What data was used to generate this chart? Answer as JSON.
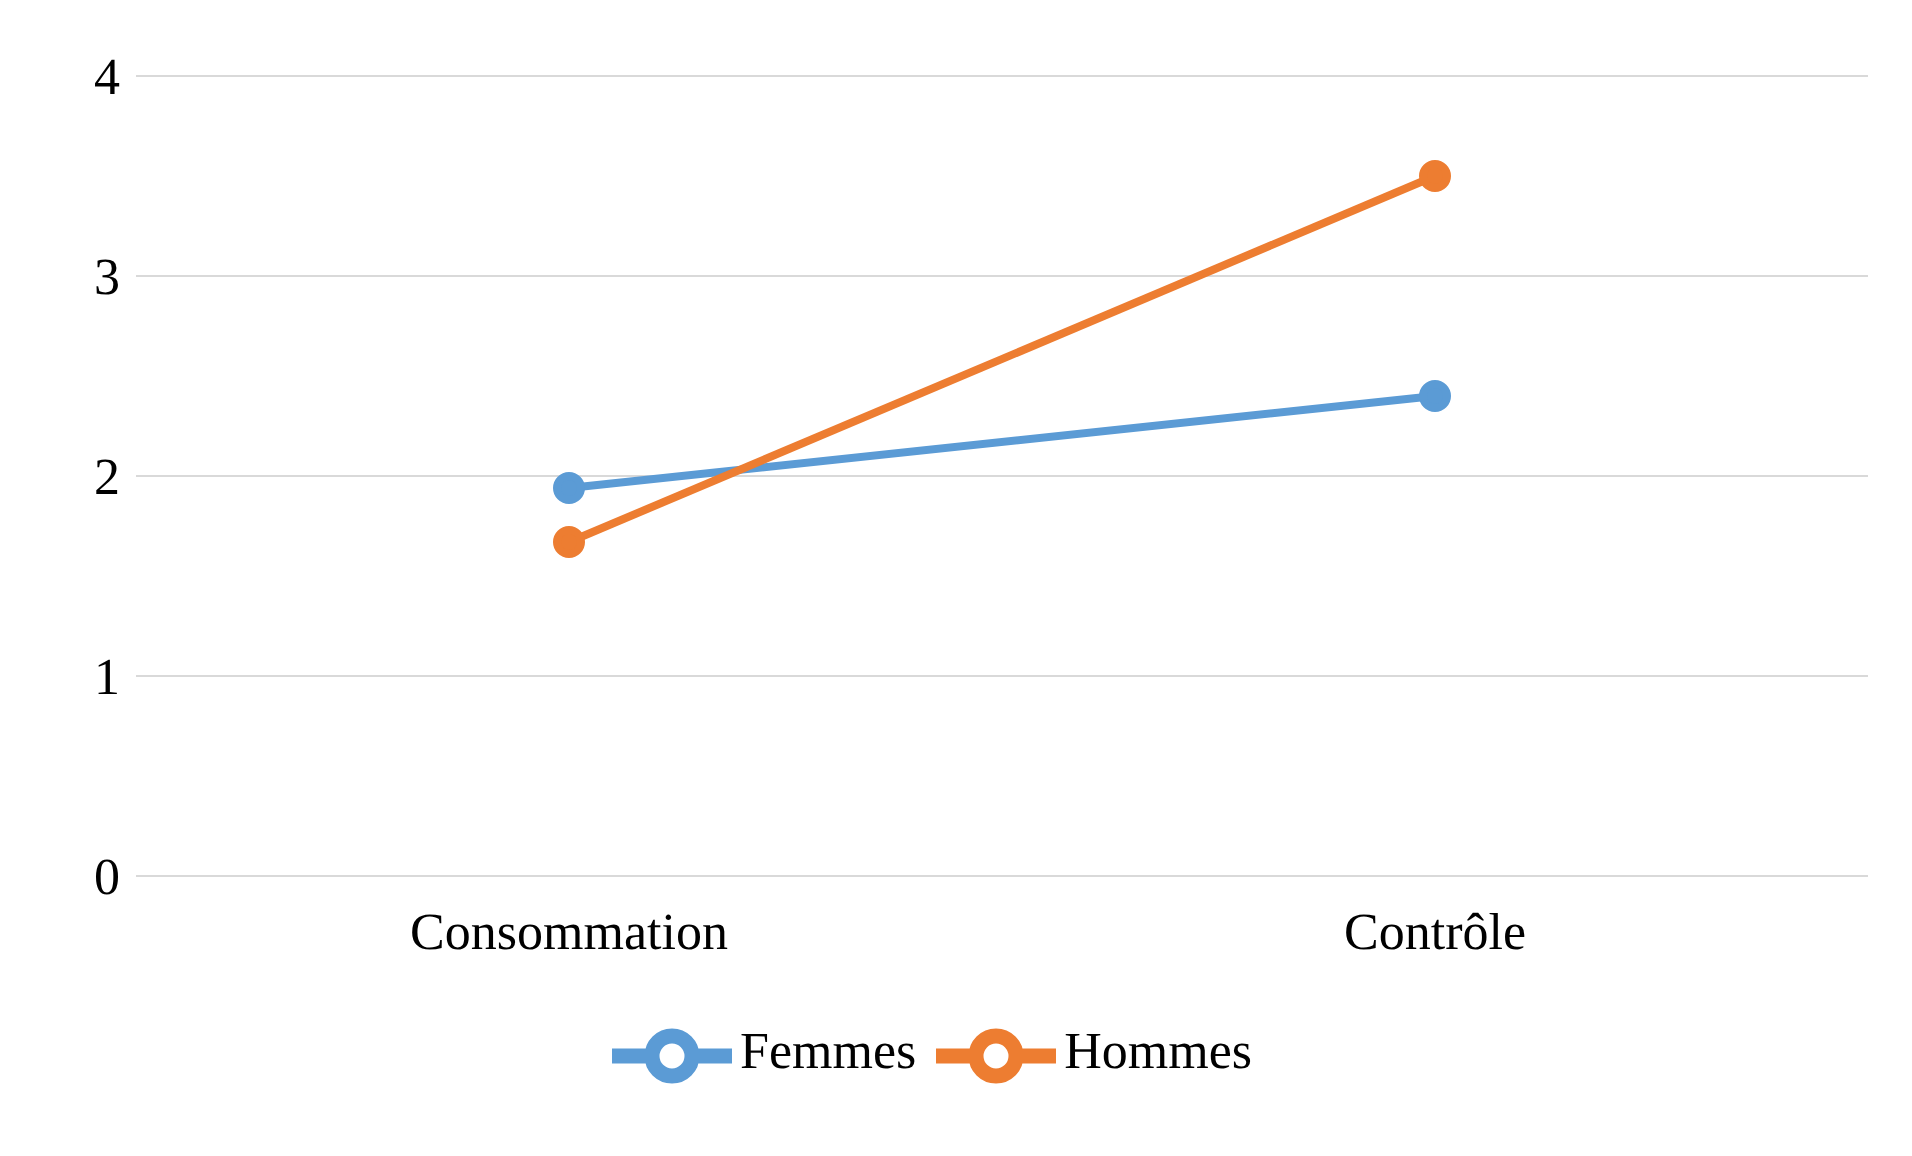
{
  "chart_data": {
    "type": "line",
    "categories": [
      "Consommation",
      "Contrôle"
    ],
    "series": [
      {
        "name": "Femmes",
        "color": "#5b9bd5",
        "values": [
          1.94,
          2.4
        ]
      },
      {
        "name": "Hommes",
        "color": "#ed7d31",
        "values": [
          1.67,
          3.5
        ]
      }
    ],
    "ylim": [
      0,
      4
    ],
    "yticks": [
      0,
      1,
      2,
      3,
      4
    ],
    "grid": "y",
    "legend": "bottom",
    "marker": "circle",
    "line_style": "solid"
  }
}
